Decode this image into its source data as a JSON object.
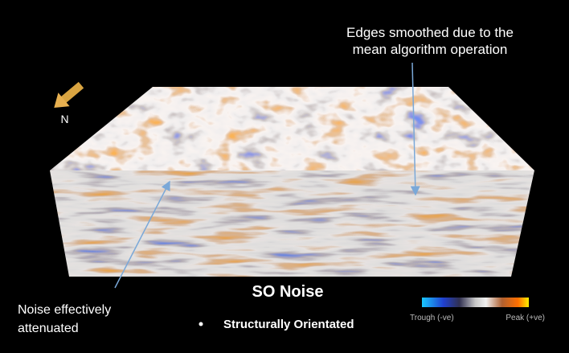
{
  "annotation_top": {
    "lines": [
      "Edges smoothed due to the",
      "mean algorithm operation"
    ]
  },
  "annotation_left": {
    "lines": [
      "Noise effectively",
      "attenuated"
    ]
  },
  "title": "SO Noise",
  "bullet": "Structurally Orientated",
  "compass": {
    "label": "N"
  },
  "legend": {
    "low_label": "Trough (-ve)",
    "high_label": "Peak (+ve)"
  }
}
